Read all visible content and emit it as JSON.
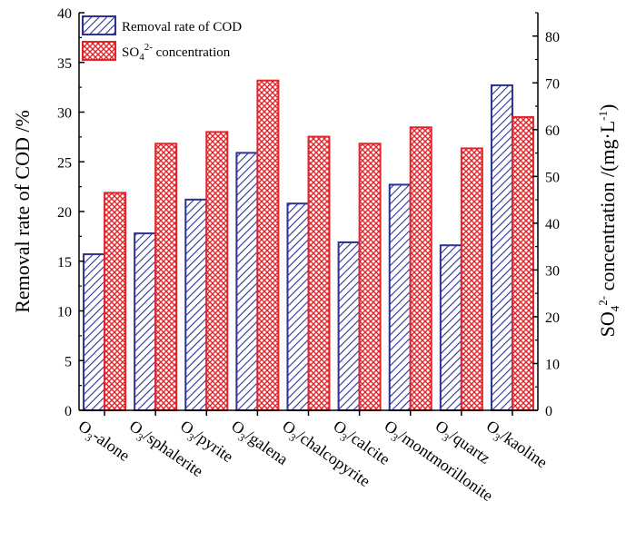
{
  "chart_data": {
    "type": "bar",
    "categories": [
      "O3-alone",
      "O3/sphalerite",
      "O3/pyrite",
      "O3/galena",
      "O3/chalcopyrite",
      "O3/calcite",
      "O3/montmorillonite",
      "O3/quartz",
      "O3/kaoline"
    ],
    "category_labels": [
      {
        "pre": "O",
        "sub": "3",
        "post": "-alone"
      },
      {
        "pre": "O",
        "sub": "3",
        "post": "/sphalerite"
      },
      {
        "pre": "O",
        "sub": "3",
        "post": "/pyrite"
      },
      {
        "pre": "O",
        "sub": "3",
        "post": "/galena"
      },
      {
        "pre": "O",
        "sub": "3",
        "post": "/chalcopyrite"
      },
      {
        "pre": "O",
        "sub": "3",
        "post": "/calcite"
      },
      {
        "pre": "O",
        "sub": "3",
        "post": "/montmorillonite"
      },
      {
        "pre": "O",
        "sub": "3",
        "post": "/quartz"
      },
      {
        "pre": "O",
        "sub": "3",
        "post": "/kaoline"
      }
    ],
    "series": [
      {
        "name": "Removal rate of COD",
        "axis": "left",
        "color": "#2d3192",
        "pattern": "diagonal",
        "values": [
          15.7,
          17.8,
          21.2,
          25.9,
          20.8,
          16.9,
          22.7,
          16.6,
          32.7
        ]
      },
      {
        "name": "SO4 2- concentration",
        "axis": "right",
        "color": "#e0262c",
        "pattern": "crosshatch",
        "values": [
          46.5,
          57.0,
          59.5,
          70.5,
          58.5,
          57.0,
          60.5,
          56.0,
          62.7
        ]
      }
    ],
    "legend": [
      {
        "text": "Removal rate of COD"
      },
      {
        "pre": "SO",
        "sub": "4",
        "sup": "2-",
        "post": " concentration"
      }
    ],
    "ylabel_left": "Removal rate of COD /%",
    "ylabel_right": {
      "pre": "SO",
      "sub": "4",
      "sup": "2-",
      "post": " concentration /(mg·L",
      "sup2": "-1",
      "post2": ")"
    },
    "ylim_left": [
      0,
      40
    ],
    "ylim_right": [
      0,
      85
    ],
    "yticks_left": [
      "0",
      "5",
      "10",
      "15",
      "20",
      "25",
      "30",
      "35",
      "40"
    ],
    "yticks_right": [
      "0",
      "10",
      "20",
      "30",
      "40",
      "50",
      "60",
      "70",
      "80"
    ],
    "legend_position": "top-left",
    "grid": false
  }
}
